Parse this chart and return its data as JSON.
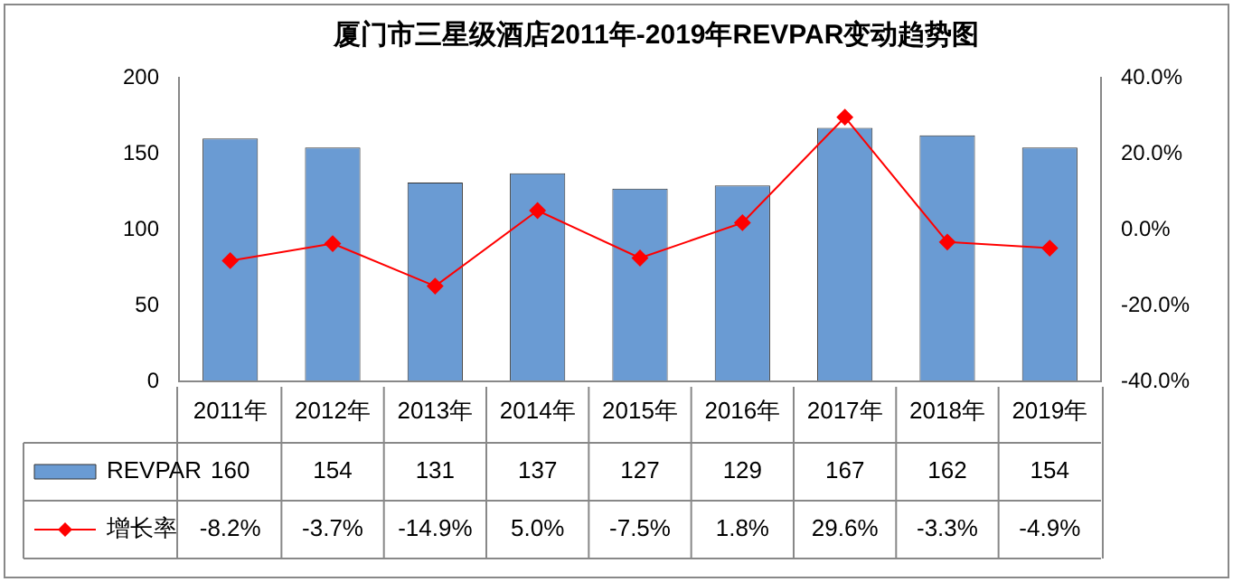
{
  "chart_data": {
    "type": "bar",
    "title": "厦门市三星级酒店2011年-2019年REVPAR变动趋势图",
    "categories": [
      "2011年",
      "2012年",
      "2013年",
      "2014年",
      "2015年",
      "2016年",
      "2017年",
      "2018年",
      "2019年"
    ],
    "series": [
      {
        "name": "REVPAR",
        "color": "#6a9bd3",
        "values": [
          160,
          154,
          131,
          137,
          127,
          129,
          167,
          162,
          154
        ],
        "value_labels": [
          "160",
          "154",
          "131",
          "137",
          "127",
          "129",
          "167",
          "162",
          "154"
        ]
      },
      {
        "name": "增长率",
        "type": "line",
        "axis": "y2",
        "color": "#ff0000",
        "marker": "diamond",
        "values": [
          -8.2,
          -3.7,
          -14.9,
          5.0,
          -7.5,
          1.8,
          29.6,
          -3.3,
          -4.9
        ],
        "value_labels": [
          "-8.2%",
          "-3.7%",
          "-14.9%",
          "5.0%",
          "-7.5%",
          "1.8%",
          "29.6%",
          "-3.3%",
          "-4.9%"
        ]
      }
    ],
    "ylim": [
      0,
      200
    ],
    "yticks": [
      0,
      50,
      100,
      150,
      200
    ],
    "y2lim": [
      -40,
      40
    ],
    "y2ticks": [
      {
        "value": -40,
        "label": "-40.0%"
      },
      {
        "value": -20,
        "label": "-20.0%"
      },
      {
        "value": 0,
        "label": "0.0%"
      },
      {
        "value": 20,
        "label": "20.0%"
      },
      {
        "value": 40,
        "label": "40.0%"
      }
    ],
    "grid": false,
    "legend": "bottom"
  }
}
